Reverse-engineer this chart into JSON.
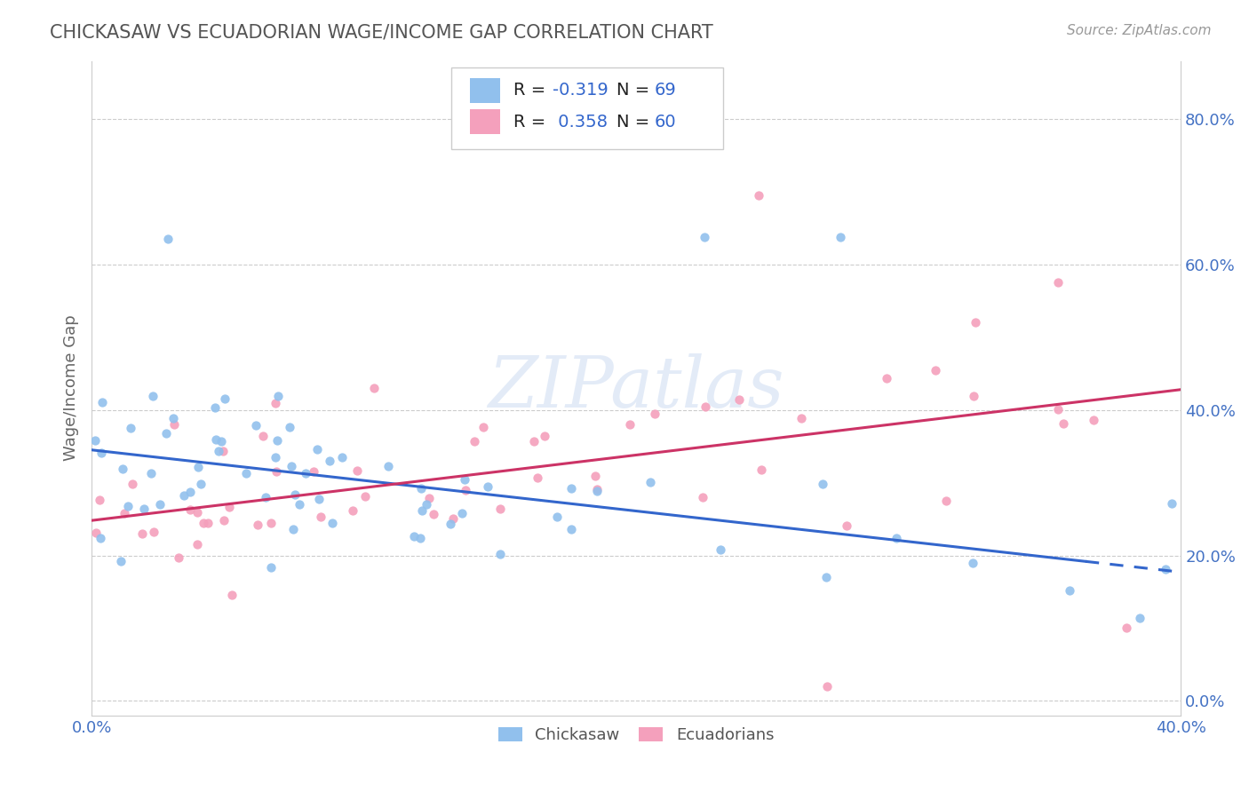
{
  "title": "CHICKASAW VS ECUADORIAN WAGE/INCOME GAP CORRELATION CHART",
  "source_text": "Source: ZipAtlas.com",
  "ylabel": "Wage/Income Gap",
  "xlim": [
    0.0,
    0.4
  ],
  "ylim": [
    -0.02,
    0.88
  ],
  "yticks": [
    0.0,
    0.2,
    0.4,
    0.6,
    0.8
  ],
  "ytick_labels": [
    "0.0%",
    "20.0%",
    "40.0%",
    "60.0%",
    "80.0%"
  ],
  "series1_name": "Chickasaw",
  "series1_color": "#91C0ED",
  "series1_R": -0.319,
  "series1_N": 69,
  "series2_name": "Ecuadorians",
  "series2_color": "#F4A0BC",
  "series2_R": 0.358,
  "series2_N": 60,
  "watermark_text": "ZIPatlas",
  "background_color": "#ffffff",
  "grid_color": "#cccccc",
  "title_color": "#555555",
  "axis_label_color": "#4472c4",
  "trend_line1_color": "#3366cc",
  "trend_line2_color": "#cc3366",
  "legend_r_color": "#3366cc",
  "legend_text_color": "#222222"
}
